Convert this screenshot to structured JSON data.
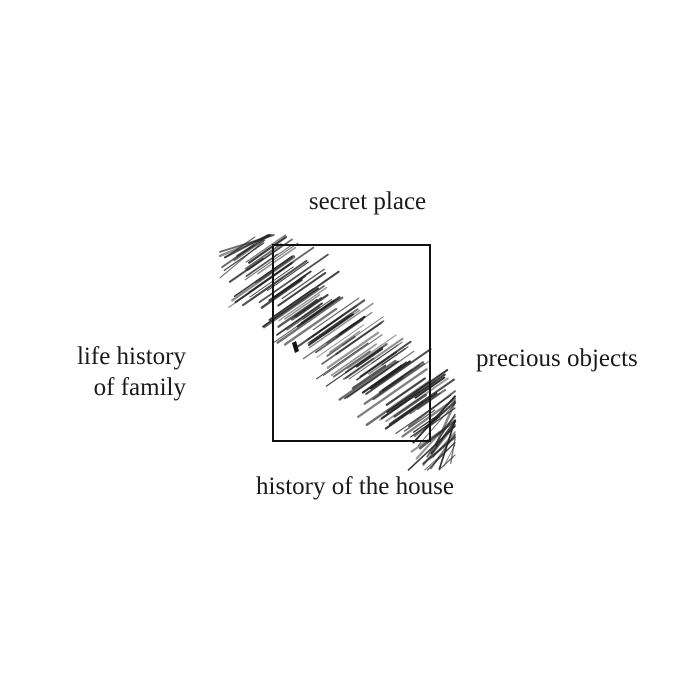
{
  "diagram": {
    "labels": {
      "top": "secret place",
      "bottom": "history of the house",
      "right": "precious objects",
      "left_line1": "life history",
      "left_line2": "of family"
    },
    "colors": {
      "ink": "#1a1a1a",
      "background": "#ffffff"
    }
  }
}
